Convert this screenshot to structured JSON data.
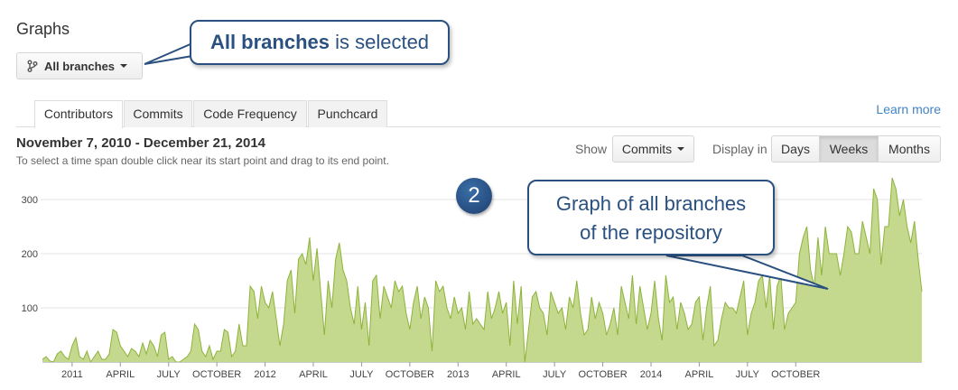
{
  "page": {
    "title": "Graphs"
  },
  "branch_selector": {
    "label": "All branches",
    "icon": "branch-icon"
  },
  "tabs": [
    {
      "label": "Contributors",
      "active": true
    },
    {
      "label": "Commits",
      "active": false
    },
    {
      "label": "Code Frequency",
      "active": false
    },
    {
      "label": "Punchcard",
      "active": false
    }
  ],
  "learn_more": "Learn more",
  "header": {
    "date_range": "November 7, 2010 - December 21, 2014",
    "hint": "To select a time span double click near its start point and drag to its end point."
  },
  "controls": {
    "show_label": "Show",
    "show_value": "Commits",
    "display_label": "Display in",
    "display_options": [
      {
        "label": "Days",
        "active": false
      },
      {
        "label": "Weeks",
        "active": true
      },
      {
        "label": "Months",
        "active": false
      }
    ]
  },
  "annotations": {
    "callout_selected": {
      "bold": "All branches",
      "rest": " is selected"
    },
    "callout_graph": {
      "line1": "Graph of all branches",
      "line2": "of the repository"
    },
    "step_badge": "2",
    "accent_color": "#2a5080"
  },
  "chart_data": {
    "type": "area",
    "color": "#8db33a",
    "fill": "#c5d98e",
    "grid": true,
    "ylim": [
      0,
      340
    ],
    "y_ticks": [
      100,
      200,
      300
    ],
    "x_tick_labels": [
      "2011",
      "APRIL",
      "JULY",
      "OCTOBER",
      "2012",
      "APRIL",
      "JULY",
      "OCTOBER",
      "2013",
      "APRIL",
      "JULY",
      "OCTOBER",
      "2014",
      "APRIL",
      "JULY",
      "OCTOBER"
    ],
    "x_tick_weeks": [
      8,
      21,
      34,
      47,
      60,
      73,
      86,
      99,
      112,
      125,
      138,
      151,
      164,
      177,
      190,
      203
    ],
    "values": [
      5,
      10,
      2,
      0,
      15,
      20,
      10,
      5,
      30,
      45,
      10,
      5,
      20,
      0,
      10,
      20,
      5,
      5,
      15,
      60,
      55,
      30,
      20,
      10,
      25,
      20,
      10,
      35,
      15,
      40,
      30,
      10,
      50,
      55,
      5,
      10,
      0,
      0,
      5,
      10,
      20,
      70,
      60,
      20,
      10,
      30,
      5,
      20,
      20,
      60,
      55,
      10,
      20,
      70,
      30,
      30,
      140,
      130,
      80,
      140,
      110,
      100,
      130,
      80,
      30,
      70,
      150,
      170,
      90,
      190,
      200,
      180,
      230,
      150,
      210,
      130,
      50,
      150,
      100,
      190,
      220,
      170,
      150,
      100,
      70,
      140,
      60,
      110,
      30,
      150,
      160,
      80,
      140,
      120,
      100,
      150,
      130,
      140,
      90,
      60,
      110,
      140,
      80,
      120,
      100,
      20,
      150,
      130,
      140,
      100,
      80,
      120,
      90,
      100,
      60,
      130,
      70,
      80,
      70,
      60,
      130,
      80,
      100,
      130,
      90,
      110,
      30,
      150,
      70,
      140,
      0,
      60,
      120,
      130,
      100,
      90,
      50,
      130,
      110,
      90,
      100,
      60,
      120,
      100,
      150,
      90,
      50,
      60,
      120,
      80,
      110,
      90,
      50,
      70,
      100,
      50,
      140,
      110,
      80,
      160,
      70,
      140,
      100,
      60,
      90,
      150,
      80,
      40,
      160,
      110,
      120,
      60,
      110,
      90,
      60,
      70,
      110,
      120,
      40,
      100,
      140,
      30,
      40,
      80,
      110,
      100,
      100,
      90,
      120,
      150,
      50,
      90,
      110,
      150,
      160,
      100,
      160,
      60,
      140,
      160,
      60,
      90,
      100,
      110,
      200,
      230,
      250,
      170,
      140,
      230,
      160,
      250,
      200,
      200,
      200,
      160,
      200,
      250,
      240,
      200,
      200,
      260,
      230,
      200,
      320,
      300,
      180,
      250,
      250,
      340,
      320,
      270,
      300,
      250,
      220,
      260,
      190,
      130
    ]
  }
}
